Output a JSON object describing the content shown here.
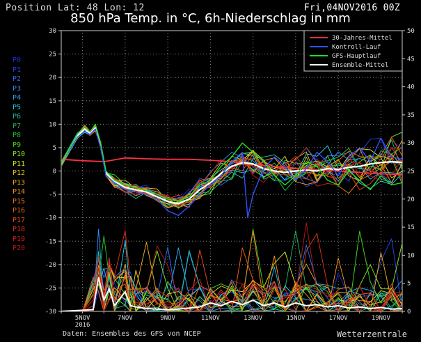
{
  "header": {
    "position_text": "Position  Lat: 48 Lon: 12",
    "date_text": "Fri,04NOV2016 00Z",
    "title": "850 hPa Temp. in °C, 6h-Niederschlag in mm"
  },
  "footer": {
    "source": "Daten: Ensembles des GFS von NCEP",
    "brand": "Wetterzentrale"
  },
  "members": [
    {
      "label": "P0",
      "color": "#1a2bd8"
    },
    {
      "label": "P1",
      "color": "#2244e8"
    },
    {
      "label": "P2",
      "color": "#2a6cf0"
    },
    {
      "label": "P3",
      "color": "#2e90f0"
    },
    {
      "label": "P4",
      "color": "#22b0f0"
    },
    {
      "label": "P5",
      "color": "#20d0e0"
    },
    {
      "label": "P6",
      "color": "#20c0a0"
    },
    {
      "label": "P7",
      "color": "#20b060"
    },
    {
      "label": "P8",
      "color": "#20c030"
    },
    {
      "label": "P9",
      "color": "#40d020"
    },
    {
      "label": "P10",
      "color": "#80e020"
    },
    {
      "label": "P11",
      "color": "#d0e020"
    },
    {
      "label": "P12",
      "color": "#e0c020"
    },
    {
      "label": "P13",
      "color": "#e8a820"
    },
    {
      "label": "P14",
      "color": "#f09020"
    },
    {
      "label": "P15",
      "color": "#f07a20"
    },
    {
      "label": "P16",
      "color": "#e86018"
    },
    {
      "label": "P17",
      "color": "#e04818"
    },
    {
      "label": "P18",
      "color": "#d83018"
    },
    {
      "label": "P19",
      "color": "#c82018"
    },
    {
      "label": "P20",
      "color": "#b01818"
    }
  ],
  "chart_data": {
    "type": "line",
    "title": "850 hPa Temp. in °C, 6h-Niederschlag in mm",
    "x_labels": [
      "5NOV\n2016",
      "7NOV",
      "9NOV",
      "11NOV",
      "13NOV",
      "15NOV",
      "17NOV",
      "19NOV"
    ],
    "x_range_days": [
      4.0,
      20.0
    ],
    "ylim_left": [
      -30,
      30
    ],
    "yticks_left": [
      -30,
      -25,
      -20,
      -15,
      -10,
      -5,
      0,
      5,
      10,
      15,
      20,
      25,
      30
    ],
    "ylim_right": [
      0,
      50
    ],
    "yticks_right": [
      0,
      5,
      10,
      15,
      20,
      25,
      30,
      35,
      40,
      45,
      50
    ],
    "grid": "dotted",
    "legend_position": "top-right",
    "legend": [
      {
        "name": "30-Jahres-Mittel",
        "color": "#ff3040"
      },
      {
        "name": "Kontroll-Lauf",
        "color": "#3050ff"
      },
      {
        "name": "GFS-Hauptlauf",
        "color": "#20e020"
      },
      {
        "name": "Ensemble-Mittel",
        "color": "#ffffff"
      }
    ],
    "series_temperature": [
      {
        "name": "30-Jahres-Mittel",
        "color": "#ff3040",
        "width": 1.8,
        "points": [
          [
            4.0,
            2.5
          ],
          [
            5.0,
            2.2
          ],
          [
            6.0,
            2.0
          ],
          [
            7.0,
            2.8
          ],
          [
            8.0,
            2.6
          ],
          [
            9.0,
            2.5
          ],
          [
            10.0,
            2.5
          ],
          [
            11.0,
            2.3
          ],
          [
            12.0,
            2.0
          ],
          [
            13.0,
            1.4
          ],
          [
            14.0,
            1.0
          ],
          [
            15.0,
            0.6
          ],
          [
            16.0,
            0.3
          ],
          [
            17.0,
            0.0
          ],
          [
            18.0,
            -0.3
          ],
          [
            19.0,
            -0.6
          ],
          [
            20.0,
            -0.8
          ]
        ]
      },
      {
        "name": "Ensemble-Mittel",
        "color": "#ffffff",
        "width": 2.2,
        "points": [
          [
            4.0,
            1.5
          ],
          [
            4.75,
            7.5
          ],
          [
            5.1,
            9.0
          ],
          [
            5.35,
            8.0
          ],
          [
            5.6,
            9.2
          ],
          [
            5.85,
            5.5
          ],
          [
            6.1,
            -0.5
          ],
          [
            6.5,
            -2.2
          ],
          [
            7.0,
            -3.5
          ],
          [
            7.5,
            -4.0
          ],
          [
            8.0,
            -4.5
          ],
          [
            8.5,
            -5.5
          ],
          [
            9.0,
            -6.5
          ],
          [
            9.5,
            -7.0
          ],
          [
            10.0,
            -6.0
          ],
          [
            10.5,
            -4.0
          ],
          [
            11.0,
            -2.5
          ],
          [
            11.5,
            -0.5
          ],
          [
            12.0,
            1.0
          ],
          [
            12.5,
            1.8
          ],
          [
            13.0,
            1.5
          ],
          [
            13.5,
            0.5
          ],
          [
            14.0,
            0.0
          ],
          [
            14.5,
            -0.3
          ],
          [
            15.0,
            0.0
          ],
          [
            15.5,
            0.2
          ],
          [
            16.0,
            0.0
          ],
          [
            16.5,
            0.5
          ],
          [
            17.0,
            0.3
          ],
          [
            17.5,
            0.8
          ],
          [
            18.0,
            1.0
          ],
          [
            18.5,
            1.5
          ],
          [
            19.0,
            1.8
          ],
          [
            19.5,
            2.0
          ],
          [
            20.0,
            1.8
          ]
        ]
      },
      {
        "name": "Kontroll-Lauf",
        "color": "#3050ff",
        "width": 1.4,
        "points": [
          [
            4.0,
            1.5
          ],
          [
            4.75,
            7.2
          ],
          [
            5.1,
            8.5
          ],
          [
            5.35,
            7.8
          ],
          [
            5.6,
            9.0
          ],
          [
            5.85,
            5.0
          ],
          [
            6.1,
            -1.0
          ],
          [
            6.5,
            -2.5
          ],
          [
            7.0,
            -4.0
          ],
          [
            7.5,
            -4.5
          ],
          [
            8.0,
            -5.0
          ],
          [
            8.5,
            -6.0
          ],
          [
            9.0,
            -8.5
          ],
          [
            9.5,
            -9.5
          ],
          [
            10.0,
            -7.5
          ],
          [
            10.5,
            -5.0
          ],
          [
            11.0,
            -3.0
          ],
          [
            11.5,
            -1.0
          ],
          [
            12.0,
            2.0
          ],
          [
            12.5,
            4.0
          ],
          [
            12.75,
            -10.0
          ],
          [
            13.0,
            -5.0
          ],
          [
            13.5,
            0.5
          ],
          [
            14.0,
            3.0
          ],
          [
            14.5,
            1.0
          ],
          [
            15.0,
            -2.0
          ],
          [
            15.5,
            0.5
          ],
          [
            16.0,
            4.0
          ],
          [
            16.5,
            2.0
          ],
          [
            17.0,
            -1.0
          ],
          [
            17.5,
            3.0
          ],
          [
            18.0,
            5.0
          ],
          [
            18.5,
            2.0
          ],
          [
            19.0,
            7.0
          ],
          [
            19.5,
            3.0
          ],
          [
            20.0,
            2.5
          ]
        ]
      },
      {
        "name": "GFS-Hauptlauf",
        "color": "#20e020",
        "width": 1.4,
        "points": [
          [
            4.0,
            1.5
          ],
          [
            4.75,
            7.8
          ],
          [
            5.1,
            9.5
          ],
          [
            5.35,
            8.3
          ],
          [
            5.6,
            10.0
          ],
          [
            5.85,
            6.0
          ],
          [
            6.1,
            0.0
          ],
          [
            6.5,
            -2.0
          ],
          [
            7.0,
            -3.0
          ],
          [
            7.5,
            -3.5
          ],
          [
            8.0,
            -4.2
          ],
          [
            8.5,
            -5.0
          ],
          [
            9.0,
            -6.0
          ],
          [
            9.5,
            -6.5
          ],
          [
            10.0,
            -5.5
          ],
          [
            10.5,
            -3.0
          ],
          [
            11.0,
            -2.0
          ],
          [
            11.5,
            1.0
          ],
          [
            12.0,
            3.0
          ],
          [
            12.5,
            6.0
          ],
          [
            13.0,
            4.0
          ],
          [
            13.5,
            2.0
          ],
          [
            14.0,
            -1.0
          ],
          [
            14.5,
            -3.0
          ],
          [
            15.0,
            -1.0
          ],
          [
            15.5,
            2.0
          ],
          [
            16.0,
            1.0
          ],
          [
            16.5,
            -2.0
          ],
          [
            17.0,
            -3.0
          ],
          [
            17.5,
            0.0
          ],
          [
            18.0,
            -2.0
          ],
          [
            18.5,
            -4.0
          ],
          [
            19.0,
            -1.0
          ],
          [
            19.5,
            -3.0
          ],
          [
            20.0,
            -2.5
          ]
        ]
      }
    ],
    "series_precipitation": [
      {
        "name": "Ensemble-Mittel",
        "color": "#ffffff",
        "width": 2.0,
        "points": [
          [
            4.0,
            0.0
          ],
          [
            5.0,
            0.2
          ],
          [
            5.5,
            0.3
          ],
          [
            5.75,
            6.0
          ],
          [
            6.0,
            2.0
          ],
          [
            6.25,
            4.0
          ],
          [
            6.5,
            1.0
          ],
          [
            7.0,
            3.5
          ],
          [
            7.25,
            1.0
          ],
          [
            7.5,
            0.8
          ],
          [
            8.0,
            0.5
          ],
          [
            8.5,
            0.4
          ],
          [
            9.0,
            0.3
          ],
          [
            9.5,
            0.4
          ],
          [
            10.0,
            0.6
          ],
          [
            10.5,
            0.8
          ],
          [
            11.0,
            1.5
          ],
          [
            11.5,
            1.0
          ],
          [
            12.0,
            1.8
          ],
          [
            12.5,
            1.2
          ],
          [
            13.0,
            2.0
          ],
          [
            13.5,
            1.0
          ],
          [
            14.0,
            1.5
          ],
          [
            14.5,
            0.8
          ],
          [
            15.0,
            1.5
          ],
          [
            15.5,
            1.0
          ],
          [
            16.0,
            1.2
          ],
          [
            16.5,
            0.8
          ],
          [
            17.0,
            1.0
          ],
          [
            17.5,
            0.6
          ],
          [
            18.0,
            0.8
          ],
          [
            18.5,
            0.5
          ],
          [
            19.0,
            0.7
          ],
          [
            19.5,
            0.4
          ],
          [
            20.0,
            0.5
          ]
        ]
      }
    ]
  }
}
